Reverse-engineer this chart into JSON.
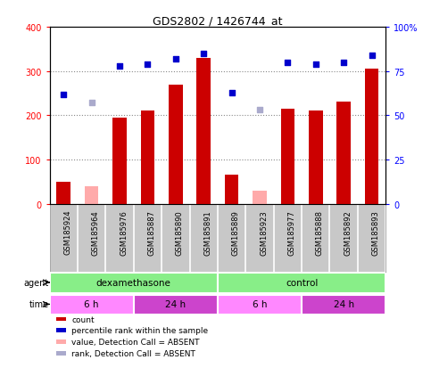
{
  "title": "GDS2802 / 1426744_at",
  "samples": [
    "GSM185924",
    "GSM185964",
    "GSM185976",
    "GSM185887",
    "GSM185890",
    "GSM185891",
    "GSM185889",
    "GSM185923",
    "GSM185977",
    "GSM185888",
    "GSM185892",
    "GSM185893"
  ],
  "count_values": [
    50,
    40,
    195,
    210,
    270,
    330,
    65,
    30,
    215,
    210,
    230,
    305
  ],
  "count_absent": [
    false,
    true,
    false,
    false,
    false,
    false,
    false,
    true,
    false,
    false,
    false,
    false
  ],
  "rank_values": [
    62,
    57,
    78,
    79,
    82,
    85,
    63,
    53,
    80,
    79,
    80,
    84
  ],
  "rank_absent": [
    false,
    true,
    false,
    false,
    false,
    false,
    false,
    true,
    false,
    false,
    false,
    false
  ],
  "count_color": "#cc0000",
  "count_absent_color": "#ffaaaa",
  "rank_color": "#0000cc",
  "rank_absent_color": "#aaaacc",
  "ylim_left": [
    0,
    400
  ],
  "ylim_right": [
    0,
    100
  ],
  "yticks_left": [
    0,
    100,
    200,
    300,
    400
  ],
  "yticks_right": [
    0,
    25,
    50,
    75,
    100
  ],
  "yticklabels_right": [
    "0",
    "25",
    "50",
    "75",
    "100%"
  ],
  "agent_groups": [
    {
      "label": "dexamethasone",
      "start": 0,
      "end": 6,
      "color": "#88ee88"
    },
    {
      "label": "control",
      "start": 6,
      "end": 12,
      "color": "#88ee88"
    }
  ],
  "time_groups": [
    {
      "label": "6 h",
      "start": 0,
      "end": 3,
      "color": "#ff88ff"
    },
    {
      "label": "24 h",
      "start": 3,
      "end": 6,
      "color": "#cc44cc"
    },
    {
      "label": "6 h",
      "start": 6,
      "end": 9,
      "color": "#ff88ff"
    },
    {
      "label": "24 h",
      "start": 9,
      "end": 12,
      "color": "#cc44cc"
    }
  ],
  "grid_color": "#888888",
  "bar_width": 0.5,
  "legend_items": [
    {
      "label": "count",
      "color": "#cc0000"
    },
    {
      "label": "percentile rank within the sample",
      "color": "#0000cc"
    },
    {
      "label": "value, Detection Call = ABSENT",
      "color": "#ffaaaa"
    },
    {
      "label": "rank, Detection Call = ABSENT",
      "color": "#aaaacc"
    }
  ]
}
